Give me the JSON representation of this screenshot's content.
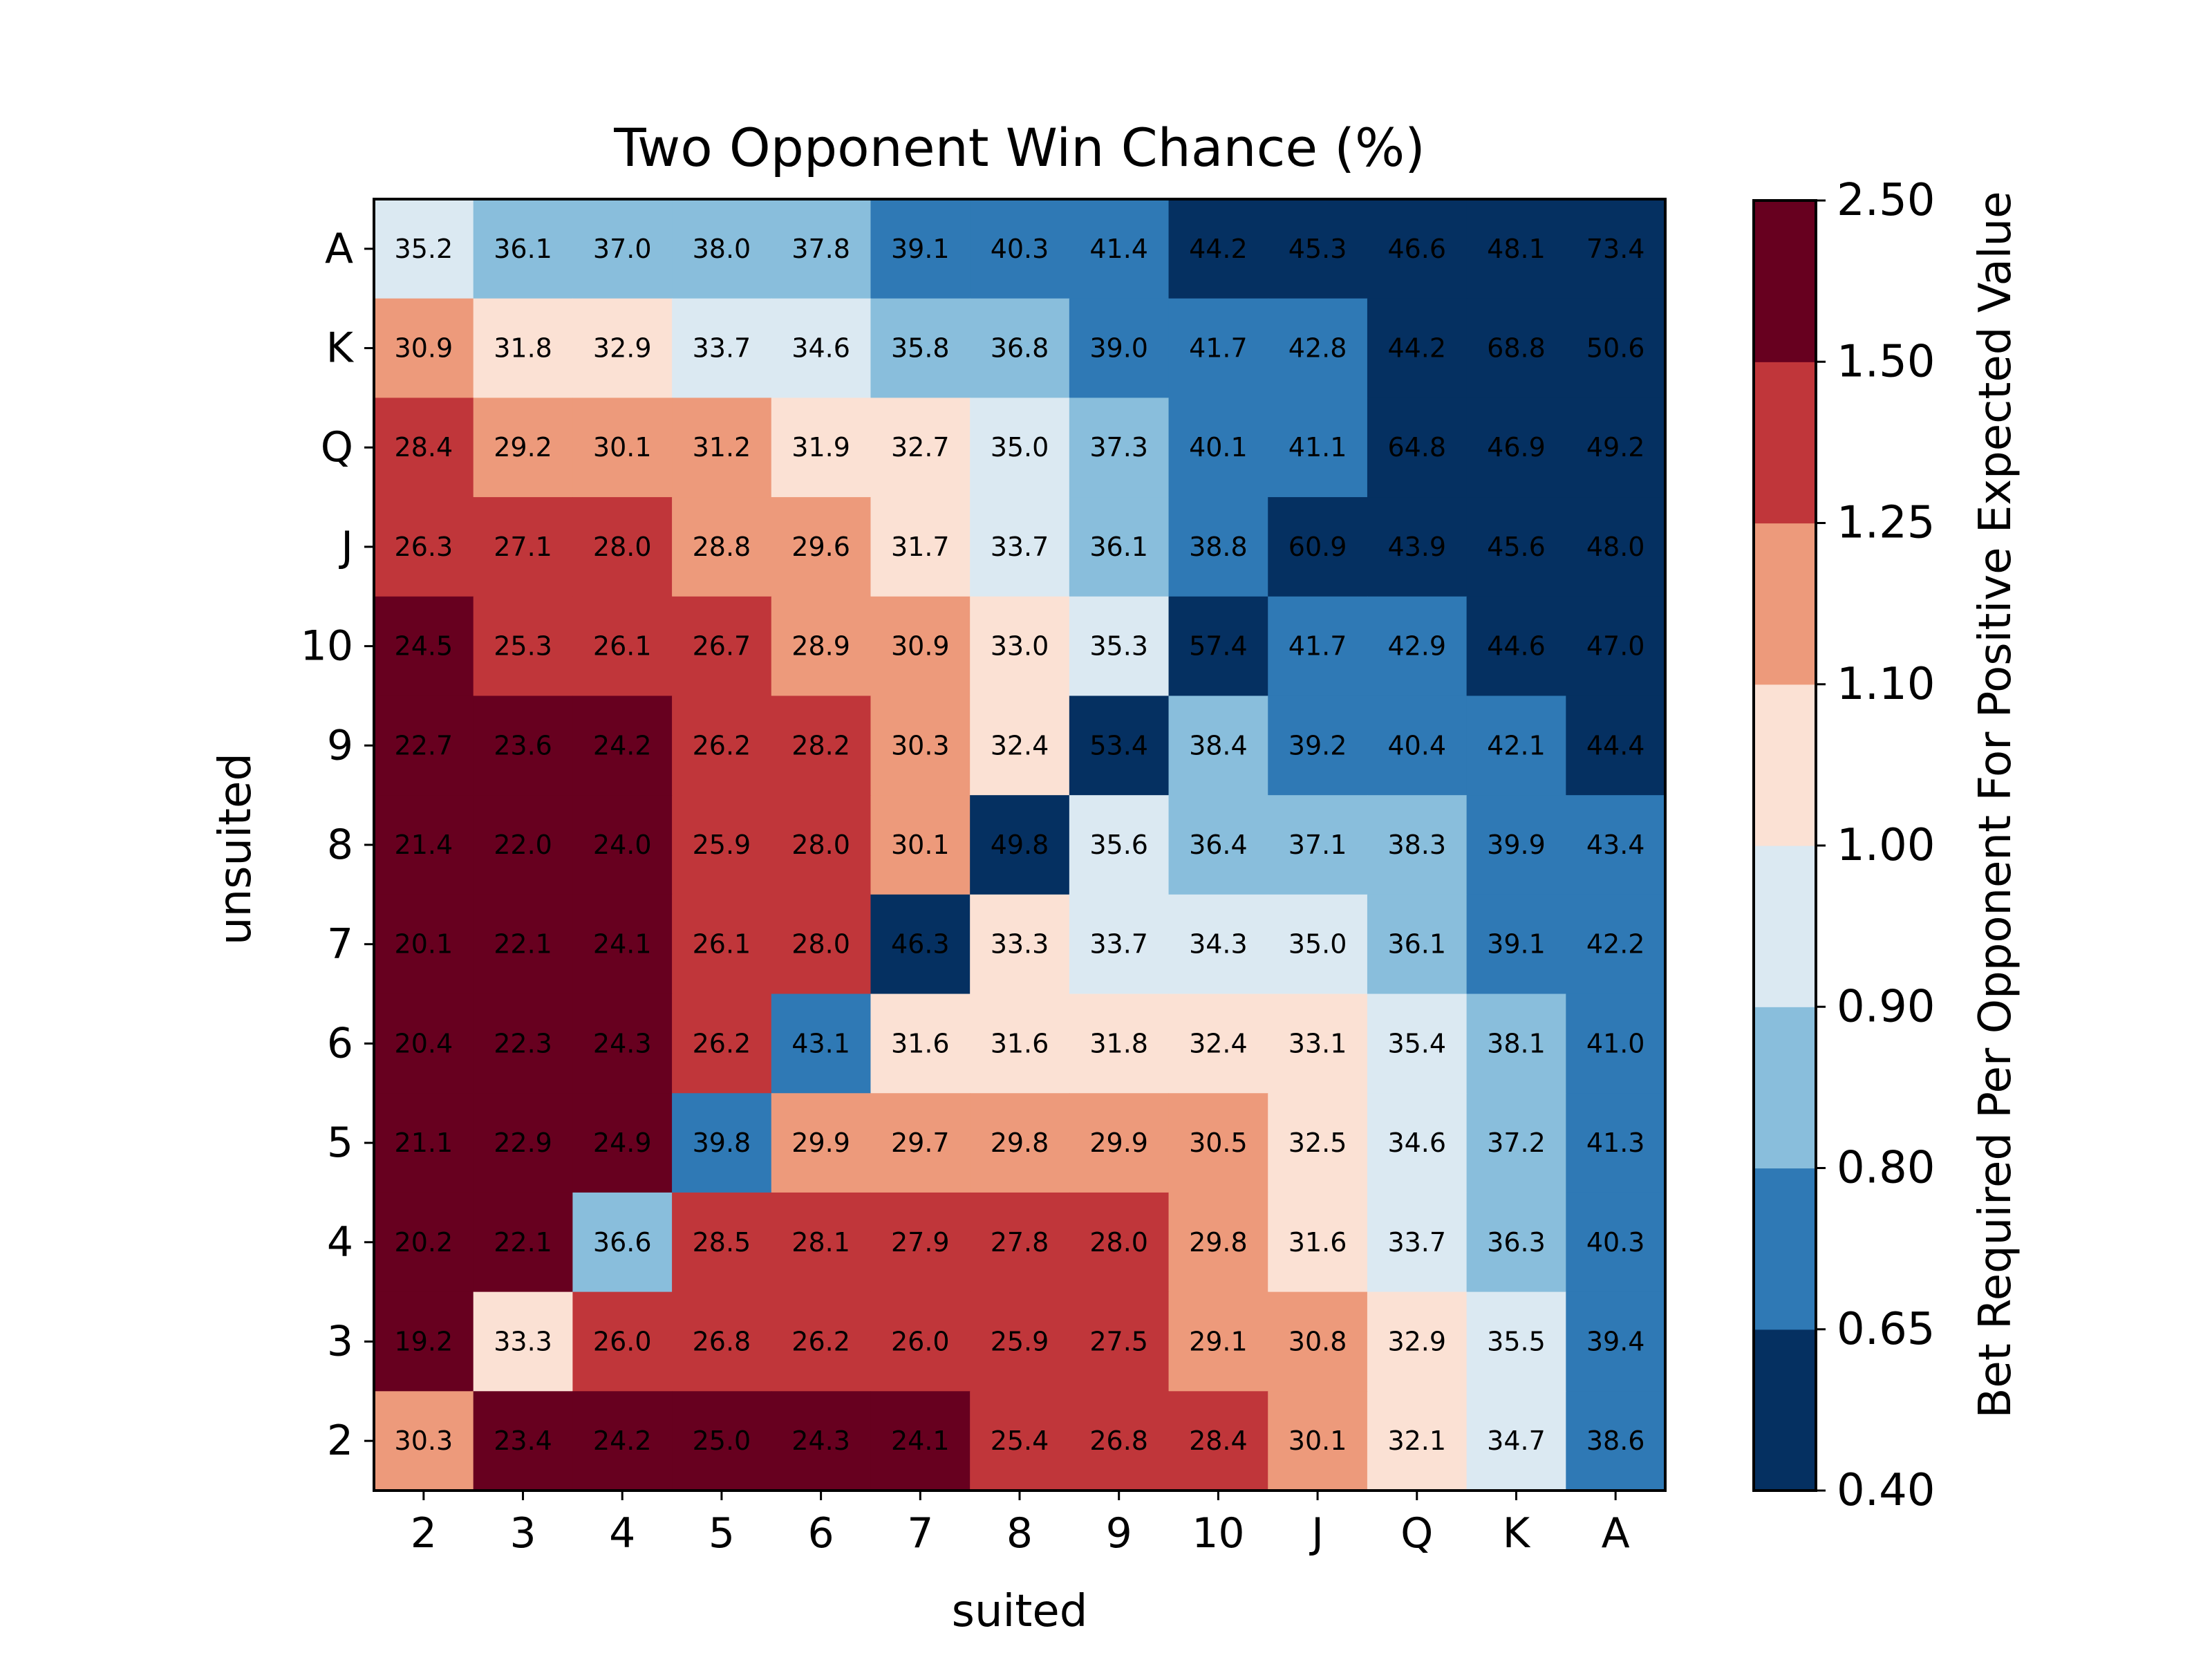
{
  "chart_data": {
    "type": "heatmap",
    "title": "Two Opponent Win Chance (%)",
    "xlabel": "suited",
    "ylabel": "unsuited",
    "x_categories": [
      "2",
      "3",
      "4",
      "5",
      "6",
      "7",
      "8",
      "9",
      "10",
      "J",
      "Q",
      "K",
      "A"
    ],
    "y_categories": [
      "A",
      "K",
      "Q",
      "J",
      "10",
      "9",
      "8",
      "7",
      "6",
      "5",
      "4",
      "3",
      "2"
    ],
    "values": [
      [
        35.2,
        36.1,
        37.0,
        38.0,
        37.8,
        39.1,
        40.3,
        41.4,
        44.2,
        45.3,
        46.6,
        48.1,
        73.4
      ],
      [
        30.9,
        31.8,
        32.9,
        33.7,
        34.6,
        35.8,
        36.8,
        39.0,
        41.7,
        42.8,
        44.2,
        68.8,
        50.6
      ],
      [
        28.4,
        29.2,
        30.1,
        31.2,
        31.9,
        32.7,
        35.0,
        37.3,
        40.1,
        41.1,
        64.8,
        46.9,
        49.2
      ],
      [
        26.3,
        27.1,
        28.0,
        28.8,
        29.6,
        31.7,
        33.7,
        36.1,
        38.8,
        60.9,
        43.9,
        45.6,
        48.0
      ],
      [
        24.5,
        25.3,
        26.1,
        26.7,
        28.9,
        30.9,
        33.0,
        35.3,
        57.4,
        41.7,
        42.9,
        44.6,
        47.0
      ],
      [
        22.7,
        23.6,
        24.2,
        26.2,
        28.2,
        30.3,
        32.4,
        53.4,
        38.4,
        39.2,
        40.4,
        42.1,
        44.4
      ],
      [
        21.4,
        22.0,
        24.0,
        25.9,
        28.0,
        30.1,
        49.8,
        35.6,
        36.4,
        37.1,
        38.3,
        39.9,
        43.4
      ],
      [
        20.1,
        22.1,
        24.1,
        26.1,
        28.0,
        46.3,
        33.3,
        33.7,
        34.3,
        35.0,
        36.1,
        39.1,
        42.2
      ],
      [
        20.4,
        22.3,
        24.3,
        26.2,
        43.1,
        31.6,
        31.6,
        31.8,
        32.4,
        33.1,
        35.4,
        38.1,
        41.0
      ],
      [
        21.1,
        22.9,
        24.9,
        39.8,
        29.9,
        29.7,
        29.8,
        29.9,
        30.5,
        32.5,
        34.6,
        37.2,
        41.3
      ],
      [
        20.2,
        22.1,
        36.6,
        28.5,
        28.1,
        27.9,
        27.8,
        28.0,
        29.8,
        31.6,
        33.7,
        36.3,
        40.3
      ],
      [
        19.2,
        33.3,
        26.0,
        26.8,
        26.2,
        26.0,
        25.9,
        27.5,
        29.1,
        30.8,
        32.9,
        35.5,
        39.4
      ],
      [
        30.3,
        23.4,
        24.2,
        25.0,
        24.3,
        24.1,
        25.4,
        26.8,
        28.4,
        30.1,
        32.1,
        34.7,
        38.6
      ]
    ],
    "colorbar": {
      "label": "Bet Required Per Opponent For Positive Expected Value",
      "bounds": [
        0.4,
        0.65,
        0.8,
        0.9,
        1.0,
        1.1,
        1.25,
        1.5,
        2.5
      ],
      "tick_labels": [
        "0.40",
        "0.65",
        "0.80",
        "0.90",
        "1.00",
        "1.10",
        "1.25",
        "1.50",
        "2.50"
      ],
      "colors": [
        "#053061",
        "#2f79b5",
        "#89bedc",
        "#dbe9f2",
        "#fbe1d4",
        "#ed9a7b",
        "#c0363a",
        "#67001f"
      ]
    },
    "grid": false,
    "legend": "colorbar-right"
  }
}
